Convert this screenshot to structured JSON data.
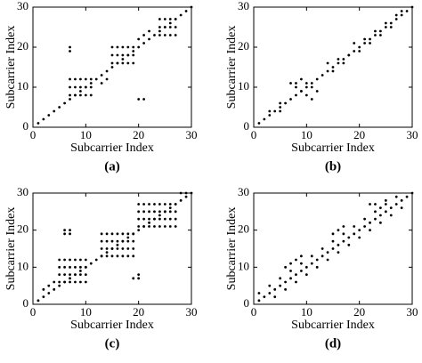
{
  "chart_data": [
    {
      "type": "scatter",
      "caption": "(a)",
      "xlabel": "Subcarrier Index",
      "ylabel": "Subcarrier Index",
      "color": "#000000",
      "xlim": [
        0,
        30
      ],
      "ylim": [
        0,
        30
      ],
      "xticks": [
        0,
        10,
        20,
        30
      ],
      "yticks": [
        0,
        10,
        20,
        30
      ],
      "x": [
        1,
        2,
        3,
        4,
        5,
        6,
        7,
        8,
        9,
        10,
        11,
        12,
        13,
        14,
        15,
        16,
        17,
        18,
        19,
        20,
        21,
        22,
        23,
        24,
        25,
        26,
        27,
        28,
        29,
        30,
        7,
        8,
        9,
        10,
        11,
        7,
        8,
        9,
        10,
        11,
        7,
        8,
        9,
        10,
        11,
        7,
        7,
        20,
        21,
        15,
        16,
        17,
        18,
        19,
        15,
        16,
        17,
        18,
        19,
        15,
        16,
        17,
        18,
        19,
        24,
        25,
        26,
        27,
        24,
        25,
        26,
        27,
        24,
        25,
        26,
        27,
        20,
        21,
        22,
        13,
        14
      ],
      "y": [
        1,
        2,
        3,
        4,
        5,
        6,
        7,
        8,
        9,
        10,
        11,
        12,
        13,
        14,
        15,
        16,
        17,
        18,
        19,
        20,
        21,
        22,
        23,
        24,
        25,
        26,
        27,
        28,
        29,
        30,
        8,
        8,
        8,
        8,
        8,
        10,
        10,
        10,
        10,
        10,
        12,
        12,
        12,
        12,
        12,
        19,
        20,
        7,
        7,
        16,
        16,
        16,
        16,
        16,
        18,
        18,
        18,
        18,
        18,
        20,
        20,
        20,
        20,
        20,
        23,
        23,
        23,
        23,
        25,
        25,
        25,
        25,
        27,
        27,
        27,
        27,
        22,
        23,
        24,
        11,
        12
      ]
    },
    {
      "type": "scatter",
      "caption": "(b)",
      "xlabel": "Subcarrier Index",
      "ylabel": "Subcarrier Index",
      "color": "#000000",
      "xlim": [
        0,
        30
      ],
      "ylim": [
        0,
        30
      ],
      "xticks": [
        0,
        10,
        20,
        30
      ],
      "yticks": [
        0,
        10,
        20,
        30
      ],
      "x": [
        1,
        2,
        3,
        4,
        5,
        6,
        7,
        8,
        9,
        10,
        11,
        12,
        13,
        14,
        15,
        16,
        17,
        18,
        19,
        20,
        21,
        22,
        23,
        24,
        25,
        26,
        27,
        28,
        29,
        30,
        7,
        8,
        9,
        10,
        11,
        8,
        9,
        10,
        11,
        12,
        3,
        5,
        14,
        16,
        18,
        19,
        21,
        23,
        25,
        27,
        28,
        5,
        15,
        17,
        20,
        22,
        24,
        26
      ],
      "y": [
        1,
        2,
        3,
        4,
        5,
        6,
        7,
        8,
        9,
        10,
        11,
        12,
        13,
        14,
        15,
        16,
        17,
        18,
        19,
        20,
        21,
        22,
        23,
        24,
        25,
        26,
        27,
        28,
        29,
        30,
        11,
        10,
        9,
        8,
        7,
        11,
        12,
        11,
        10,
        9,
        4,
        6,
        16,
        17,
        18,
        21,
        22,
        24,
        26,
        28,
        29,
        4,
        14,
        16,
        19,
        21,
        23,
        25
      ]
    },
    {
      "type": "scatter",
      "caption": "(c)",
      "xlabel": "Subcarrier Index",
      "ylabel": "Subcarrier Index",
      "color": "#000000",
      "xlim": [
        0,
        30
      ],
      "ylim": [
        0,
        30
      ],
      "xticks": [
        0,
        10,
        20,
        30
      ],
      "yticks": [
        0,
        10,
        20,
        30
      ],
      "x": [
        1,
        2,
        3,
        4,
        5,
        6,
        7,
        8,
        9,
        10,
        11,
        12,
        13,
        14,
        15,
        16,
        17,
        18,
        19,
        20,
        21,
        22,
        23,
        24,
        25,
        26,
        27,
        28,
        29,
        30,
        5,
        6,
        7,
        8,
        9,
        10,
        5,
        6,
        7,
        8,
        9,
        10,
        5,
        6,
        7,
        8,
        9,
        10,
        5,
        6,
        7,
        8,
        9,
        10,
        6,
        6,
        7,
        7,
        19,
        20,
        20,
        13,
        14,
        15,
        16,
        17,
        18,
        19,
        13,
        14,
        15,
        16,
        17,
        18,
        19,
        13,
        14,
        15,
        16,
        17,
        18,
        19,
        13,
        14,
        15,
        16,
        17,
        18,
        19,
        20,
        21,
        22,
        23,
        24,
        25,
        26,
        27,
        20,
        21,
        22,
        23,
        24,
        25,
        26,
        27,
        20,
        21,
        22,
        23,
        24,
        25,
        26,
        27,
        20,
        21,
        22,
        23,
        24,
        25,
        26,
        27,
        2,
        3,
        4,
        28,
        29
      ],
      "y": [
        1,
        2,
        3,
        4,
        5,
        6,
        7,
        8,
        9,
        10,
        11,
        12,
        13,
        14,
        15,
        16,
        17,
        18,
        19,
        20,
        21,
        22,
        23,
        24,
        25,
        26,
        27,
        28,
        29,
        30,
        6,
        6,
        6,
        6,
        6,
        6,
        8,
        8,
        8,
        8,
        8,
        8,
        10,
        10,
        10,
        10,
        10,
        10,
        12,
        12,
        12,
        12,
        12,
        12,
        19,
        20,
        19,
        20,
        7,
        7,
        8,
        13,
        13,
        13,
        13,
        13,
        13,
        13,
        15,
        15,
        15,
        15,
        15,
        15,
        15,
        17,
        17,
        17,
        17,
        17,
        17,
        17,
        19,
        19,
        19,
        19,
        19,
        19,
        19,
        21,
        21,
        21,
        21,
        21,
        21,
        21,
        21,
        23,
        23,
        23,
        23,
        23,
        23,
        23,
        23,
        25,
        25,
        25,
        25,
        25,
        25,
        25,
        25,
        27,
        27,
        27,
        27,
        27,
        27,
        27,
        27,
        4,
        5,
        6,
        30,
        30
      ]
    },
    {
      "type": "scatter",
      "caption": "(d)",
      "xlabel": "Subcarrier Index",
      "ylabel": "Subcarrier Index",
      "color": "#000000",
      "xlim": [
        0,
        30
      ],
      "ylim": [
        0,
        30
      ],
      "xticks": [
        0,
        10,
        20,
        30
      ],
      "yticks": [
        0,
        10,
        20,
        30
      ],
      "x": [
        1,
        2,
        3,
        4,
        5,
        6,
        7,
        8,
        9,
        10,
        11,
        12,
        13,
        14,
        15,
        16,
        17,
        18,
        19,
        20,
        21,
        22,
        23,
        24,
        25,
        26,
        27,
        28,
        29,
        30,
        1,
        3,
        5,
        7,
        9,
        11,
        13,
        15,
        17,
        19,
        21,
        23,
        25,
        27,
        4,
        6,
        8,
        10,
        12,
        14,
        16,
        18,
        20,
        22,
        24,
        26,
        28,
        6,
        7,
        8,
        9,
        15,
        16,
        17,
        22,
        23,
        24,
        25
      ],
      "y": [
        1,
        2,
        3,
        4,
        5,
        6,
        7,
        8,
        9,
        10,
        11,
        12,
        13,
        14,
        15,
        16,
        17,
        18,
        19,
        20,
        21,
        22,
        23,
        24,
        25,
        26,
        27,
        28,
        29,
        30,
        3,
        5,
        7,
        9,
        11,
        13,
        15,
        17,
        19,
        21,
        23,
        25,
        27,
        29,
        2,
        4,
        6,
        8,
        10,
        12,
        14,
        16,
        18,
        20,
        22,
        24,
        26,
        10,
        11,
        12,
        13,
        19,
        20,
        21,
        27,
        27,
        26,
        28
      ]
    }
  ]
}
